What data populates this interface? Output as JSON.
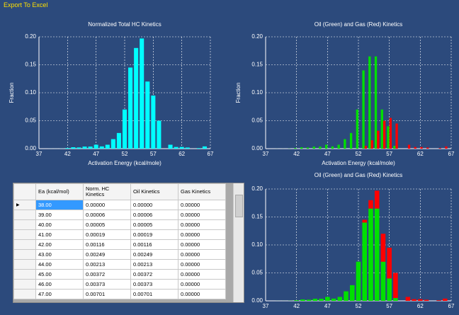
{
  "toolbar": {
    "export_label": "Export To Excel"
  },
  "chart_data": [
    {
      "type": "bar",
      "title": "Normalized Total HC Kinetics",
      "xlabel": "Activation Energy (kcal/mole)",
      "ylabel": "Fraction",
      "x": [
        38,
        39,
        40,
        41,
        42,
        43,
        44,
        45,
        46,
        47,
        48,
        49,
        50,
        51,
        52,
        53,
        54,
        55,
        56,
        57,
        58,
        59,
        60,
        61,
        62,
        63,
        64,
        65,
        66
      ],
      "values": [
        0,
        6e-05,
        5e-05,
        0.00019,
        0.00116,
        0.00249,
        0.00213,
        0.00372,
        0.00373,
        0.00701,
        0.004,
        0.007,
        0.017,
        0.028,
        0.07,
        0.145,
        0.18,
        0.197,
        0.12,
        0.095,
        0.05,
        0,
        0.007,
        0.003,
        0.003,
        0.002,
        0,
        0.001,
        0.004
      ],
      "color": "#00ffff",
      "xlim": [
        37,
        67
      ],
      "xticks": [
        37,
        42,
        47,
        52,
        57,
        62,
        67
      ],
      "ylim": [
        0,
        0.2
      ],
      "yticks": [
        {
          "value": 0,
          "label": "0.00"
        },
        {
          "value": 0.05,
          "label": "0.05"
        },
        {
          "value": 0.1,
          "label": "0.10"
        },
        {
          "value": 0.15,
          "label": "0.15"
        },
        {
          "value": 0.2,
          "label": "0.20"
        }
      ],
      "grid": true
    },
    {
      "type": "grouped_bar",
      "title": "Oil (Green) and Gas (Red) Kinetics",
      "xlabel": "Activation Energy (kcal/mole)",
      "ylabel": "Fraction",
      "x": [
        38,
        39,
        40,
        41,
        42,
        43,
        44,
        45,
        46,
        47,
        48,
        49,
        50,
        51,
        52,
        53,
        54,
        55,
        56,
        57,
        58,
        59,
        60,
        61,
        62,
        63,
        64,
        65,
        66
      ],
      "series": [
        {
          "color": "#00e000",
          "values": [
            0,
            6e-05,
            5e-05,
            0.00019,
            0.00116,
            0.00249,
            0.00213,
            0.00372,
            0.00373,
            0.00701,
            0.004,
            0.007,
            0.017,
            0.028,
            0.07,
            0.14,
            0.165,
            0.165,
            0.07,
            0.04,
            0.005,
            0,
            0,
            0,
            0,
            0,
            0,
            0,
            0
          ]
        },
        {
          "color": "#ff0000",
          "values": [
            0,
            0,
            0,
            0,
            0,
            0,
            0,
            0,
            0,
            0,
            0,
            0,
            0,
            0,
            0,
            0.005,
            0.015,
            0.032,
            0.05,
            0.055,
            0.045,
            0,
            0.007,
            0.003,
            0.003,
            0.002,
            0,
            0.001,
            0.004
          ]
        }
      ],
      "xlim": [
        37,
        67
      ],
      "xticks": [
        37,
        42,
        47,
        52,
        57,
        62,
        67
      ],
      "ylim": [
        0,
        0.2
      ],
      "yticks": [
        {
          "value": 0,
          "label": "0.00"
        },
        {
          "value": 0.05,
          "label": "0.05"
        },
        {
          "value": 0.1,
          "label": "0.10"
        },
        {
          "value": 0.15,
          "label": "0.15"
        },
        {
          "value": 0.2,
          "label": "0.20"
        }
      ],
      "grid": true
    },
    {
      "type": "stacked_bar",
      "title": "Oil (Green) and Gas (Red) Kinetics",
      "ylabel": "Fraction",
      "x": [
        38,
        39,
        40,
        41,
        42,
        43,
        44,
        45,
        46,
        47,
        48,
        49,
        50,
        51,
        52,
        53,
        54,
        55,
        56,
        57,
        58,
        59,
        60,
        61,
        62,
        63,
        64,
        65,
        66
      ],
      "series": [
        {
          "color": "#00e000",
          "values": [
            0,
            6e-05,
            5e-05,
            0.00019,
            0.00116,
            0.00249,
            0.00213,
            0.00372,
            0.00373,
            0.00701,
            0.004,
            0.007,
            0.017,
            0.028,
            0.07,
            0.14,
            0.165,
            0.165,
            0.07,
            0.04,
            0.005,
            0,
            0,
            0,
            0,
            0,
            0,
            0,
            0
          ]
        },
        {
          "color": "#ff0000",
          "values": [
            0,
            0,
            0,
            0,
            0,
            0,
            0,
            0,
            0,
            0,
            0,
            0,
            0,
            0,
            0,
            0.005,
            0.015,
            0.032,
            0.05,
            0.055,
            0.045,
            0,
            0.007,
            0.003,
            0.003,
            0.002,
            0,
            0.001,
            0.004
          ]
        }
      ],
      "xlim": [
        37,
        67
      ],
      "xticks": [
        37,
        42,
        47,
        52,
        57,
        62,
        67
      ],
      "ylim": [
        0,
        0.2
      ],
      "yticks": [
        {
          "value": 0,
          "label": "0.00"
        },
        {
          "value": 0.05,
          "label": "0.05"
        },
        {
          "value": 0.1,
          "label": "0.10"
        },
        {
          "value": 0.15,
          "label": "0.15"
        },
        {
          "value": 0.2,
          "label": "0.20"
        }
      ],
      "grid": true
    }
  ],
  "table": {
    "columns": [
      "Ea (kcal/mol)",
      "Norm. HC Kinetics",
      "Oil Kinetics",
      "Gas Kinetics"
    ],
    "rows": [
      [
        "38.00",
        "0.00000",
        "0.00000",
        "0.00000"
      ],
      [
        "39.00",
        "0.00006",
        "0.00006",
        "0.00000"
      ],
      [
        "40.00",
        "0.00005",
        "0.00005",
        "0.00000"
      ],
      [
        "41.00",
        "0.00019",
        "0.00019",
        "0.00000"
      ],
      [
        "42.00",
        "0.00116",
        "0.00116",
        "0.00000"
      ],
      [
        "43.00",
        "0.00249",
        "0.00249",
        "0.00000"
      ],
      [
        "44.00",
        "0.00213",
        "0.00213",
        "0.00000"
      ],
      [
        "45.00",
        "0.00372",
        "0.00372",
        "0.00000"
      ],
      [
        "46.00",
        "0.00373",
        "0.00373",
        "0.00000"
      ],
      [
        "47.00",
        "0.00701",
        "0.00701",
        "0.00000"
      ]
    ]
  }
}
